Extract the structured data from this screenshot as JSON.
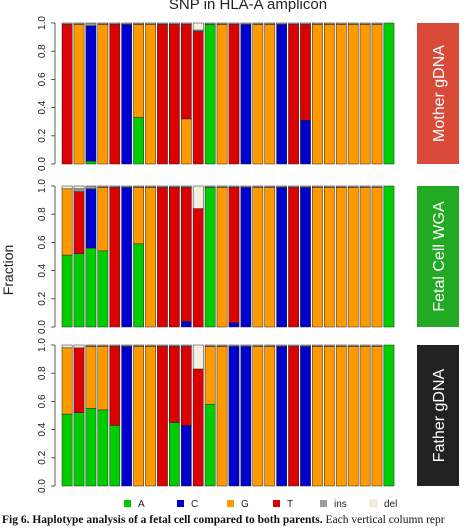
{
  "chart_data": {
    "type": "bar",
    "stacked": true,
    "title": "SNP in HLA-A amplicon",
    "ylabel": "Fraction",
    "ylim": [
      0,
      1
    ],
    "yticks": [
      "0.0",
      "0.2",
      "0.4",
      "0.6",
      "0.8",
      "1.0"
    ],
    "n_columns": 28,
    "legend_position": "bottom",
    "legend": [
      {
        "key": "A",
        "label": "A",
        "color": "#00cc00"
      },
      {
        "key": "C",
        "label": "C",
        "color": "#0000cc"
      },
      {
        "key": "G",
        "label": "G",
        "color": "#ff9900"
      },
      {
        "key": "T",
        "label": "T",
        "color": "#dd0000"
      },
      {
        "key": "ins",
        "label": "ins",
        "color": "#9c9c9c"
      },
      {
        "key": "del",
        "label": "del",
        "color": "#f3eee0"
      }
    ],
    "panels": [
      {
        "label": "Mother gDNA",
        "label_color": "#d94a38",
        "columns": [
          {
            "T": 0.99,
            "ins": 0.01
          },
          {
            "G": 0.99,
            "ins": 0.01
          },
          {
            "A": 0.02,
            "C": 0.96,
            "ins": 0.02
          },
          {
            "G": 0.99,
            "ins": 0.01
          },
          {
            "T": 0.99,
            "ins": 0.01
          },
          {
            "C": 0.99,
            "ins": 0.01
          },
          {
            "A": 0.33,
            "G": 0.66,
            "ins": 0.01
          },
          {
            "G": 0.99,
            "ins": 0.01
          },
          {
            "T": 0.99,
            "ins": 0.01
          },
          {
            "T": 0.99,
            "ins": 0.01
          },
          {
            "G": 0.32,
            "T": 0.67,
            "ins": 0.01
          },
          {
            "T": 0.94,
            "ins": 0.01,
            "del": 0.05
          },
          {
            "A": 0.99,
            "ins": 0.01
          },
          {
            "G": 0.99,
            "ins": 0.01
          },
          {
            "T": 0.99,
            "ins": 0.01
          },
          {
            "C": 0.99,
            "ins": 0.01
          },
          {
            "G": 0.99,
            "ins": 0.01
          },
          {
            "G": 0.99,
            "ins": 0.01
          },
          {
            "C": 0.99,
            "ins": 0.01
          },
          {
            "T": 0.99,
            "ins": 0.01
          },
          {
            "T": 0.68,
            "C": 0.31,
            "ins": 0.01
          },
          {
            "G": 0.99,
            "ins": 0.01
          },
          {
            "G": 0.99,
            "ins": 0.01
          },
          {
            "G": 0.99,
            "ins": 0.01
          },
          {
            "G": 0.99,
            "ins": 0.01
          },
          {
            "G": 0.99,
            "ins": 0.01
          },
          {
            "G": 0.99,
            "ins": 0.01
          },
          {
            "A": 1.0
          }
        ]
      },
      {
        "label": "Fetal Cell WGA",
        "label_color": "#22aa22",
        "columns": [
          {
            "A": 0.51,
            "G": 0.47,
            "del": 0.02
          },
          {
            "A": 0.52,
            "T": 0.44,
            "ins": 0.02,
            "del": 0.02
          },
          {
            "A": 0.56,
            "C": 0.42,
            "ins": 0.02
          },
          {
            "A": 0.54,
            "G": 0.45,
            "ins": 0.01
          },
          {
            "T": 0.99,
            "ins": 0.01
          },
          {
            "C": 0.99,
            "ins": 0.01
          },
          {
            "A": 0.59,
            "G": 0.4,
            "ins": 0.01
          },
          {
            "G": 0.99,
            "ins": 0.01
          },
          {
            "T": 0.99,
            "ins": 0.01
          },
          {
            "T": 0.99,
            "ins": 0.01
          },
          {
            "C": 0.04,
            "T": 0.95,
            "ins": 0.01
          },
          {
            "T": 0.84,
            "del": 0.16
          },
          {
            "A": 0.99,
            "ins": 0.01
          },
          {
            "G": 0.99,
            "ins": 0.01
          },
          {
            "C": 0.03,
            "T": 0.96,
            "ins": 0.01
          },
          {
            "C": 0.99,
            "ins": 0.01
          },
          {
            "G": 0.99,
            "ins": 0.01
          },
          {
            "G": 0.99,
            "ins": 0.01
          },
          {
            "C": 0.99,
            "ins": 0.01
          },
          {
            "T": 0.99,
            "ins": 0.01
          },
          {
            "C": 0.99,
            "ins": 0.01
          },
          {
            "G": 0.99,
            "ins": 0.01
          },
          {
            "G": 0.99,
            "ins": 0.01
          },
          {
            "G": 0.99,
            "ins": 0.01
          },
          {
            "G": 0.99,
            "ins": 0.01
          },
          {
            "G": 0.99,
            "ins": 0.01
          },
          {
            "G": 0.99,
            "ins": 0.01
          },
          {
            "A": 1.0
          }
        ]
      },
      {
        "label": "Father gDNA",
        "label_color": "#222222",
        "columns": [
          {
            "A": 0.51,
            "G": 0.47,
            "del": 0.02
          },
          {
            "A": 0.52,
            "T": 0.46,
            "del": 0.02
          },
          {
            "A": 0.55,
            "G": 0.44,
            "ins": 0.01
          },
          {
            "A": 0.54,
            "G": 0.45,
            "ins": 0.01
          },
          {
            "A": 0.43,
            "T": 0.56,
            "ins": 0.01
          },
          {
            "C": 0.99,
            "ins": 0.01
          },
          {
            "G": 0.99,
            "ins": 0.01
          },
          {
            "G": 0.99,
            "ins": 0.01
          },
          {
            "T": 0.99,
            "ins": 0.01
          },
          {
            "A": 0.45,
            "T": 0.54,
            "ins": 0.01
          },
          {
            "C": 0.43,
            "T": 0.56,
            "ins": 0.01
          },
          {
            "T": 0.83,
            "del": 0.17
          },
          {
            "A": 0.58,
            "G": 0.41,
            "ins": 0.01
          },
          {
            "G": 0.99,
            "ins": 0.01
          },
          {
            "C": 0.99,
            "ins": 0.01
          },
          {
            "C": 0.99,
            "ins": 0.01
          },
          {
            "G": 0.99,
            "ins": 0.01
          },
          {
            "G": 0.99,
            "ins": 0.01
          },
          {
            "C": 0.99,
            "ins": 0.01
          },
          {
            "T": 0.99,
            "ins": 0.01
          },
          {
            "C": 0.99,
            "ins": 0.01
          },
          {
            "G": 0.99,
            "ins": 0.01
          },
          {
            "G": 0.99,
            "ins": 0.01
          },
          {
            "G": 0.99,
            "ins": 0.01
          },
          {
            "G": 0.99,
            "ins": 0.01
          },
          {
            "G": 0.99,
            "ins": 0.01
          },
          {
            "G": 0.99,
            "ins": 0.01
          },
          {
            "A": 1.0
          }
        ]
      }
    ]
  },
  "caption": {
    "bold": "Fig 6. Haplotype analysis of a fetal cell compared to both parents.",
    "rest": " Each vertical column repr"
  }
}
